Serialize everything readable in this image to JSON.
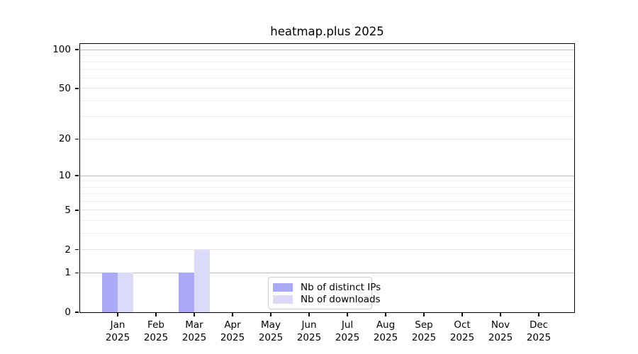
{
  "chart_data": {
    "type": "bar",
    "title": "heatmap.plus 2025",
    "year_label": "2025",
    "months": [
      "Jan",
      "Feb",
      "Mar",
      "Apr",
      "May",
      "Jun",
      "Jul",
      "Aug",
      "Sep",
      "Oct",
      "Nov",
      "Dec"
    ],
    "series": [
      {
        "name": "Nb of distinct IPs",
        "color": "#a9a9f7",
        "values": [
          1,
          0,
          1,
          0,
          0,
          0,
          0,
          0,
          0,
          0,
          0,
          0
        ]
      },
      {
        "name": "Nb of downloads",
        "color": "#dbdbf9",
        "values": [
          1,
          0,
          2,
          0,
          0,
          0,
          0,
          0,
          0,
          0,
          0,
          0
        ]
      }
    ],
    "xlabel": "",
    "ylabel": "",
    "yscale": "log1p",
    "ylim": [
      0,
      110
    ],
    "yticks": [
      100,
      50,
      20,
      10,
      5,
      2,
      1,
      0
    ],
    "major_gridlines": [
      1,
      10,
      100
    ],
    "mid_gridlines": [
      2,
      5,
      20,
      50
    ],
    "minor_gridlines": [
      3,
      4,
      6,
      7,
      8,
      9,
      30,
      40,
      60,
      70,
      80,
      90
    ],
    "grid": "horizontal major+minor",
    "legend_position": "lower center"
  },
  "colors": {
    "background": "#ffffff",
    "axis": "#000000",
    "major_grid": "#bbbbbb",
    "mid_grid": "#e4e4e4",
    "minor_grid": "#f0f0f0",
    "legend_border": "#cccccc",
    "text": "#000000"
  }
}
